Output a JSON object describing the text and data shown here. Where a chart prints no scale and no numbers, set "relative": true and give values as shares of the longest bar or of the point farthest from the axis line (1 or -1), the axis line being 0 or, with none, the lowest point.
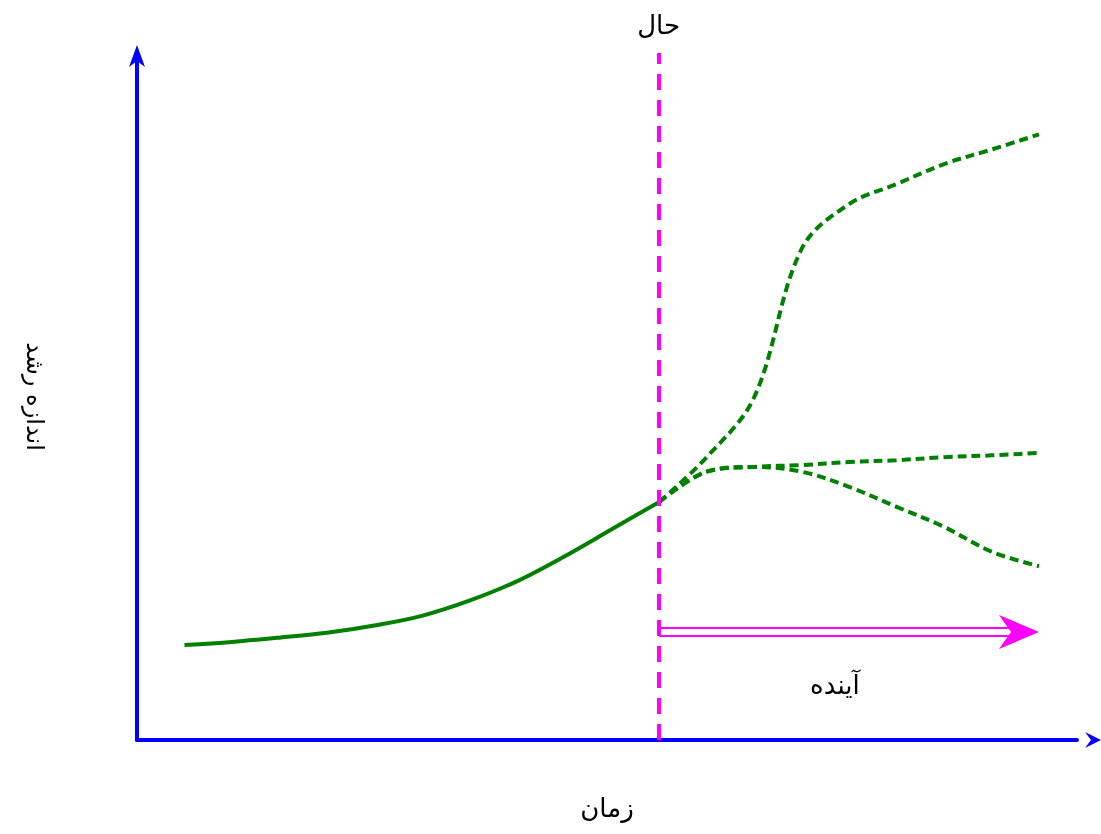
{
  "chart_data": {
    "type": "line",
    "relative": true,
    "xlabel": "زمان",
    "ylabel": "اندازه رشد",
    "categories": [
      null,
      null,
      null,
      null,
      null,
      null,
      null,
      null,
      null,
      null,
      null,
      null,
      null,
      null,
      null,
      null,
      null,
      null,
      null
    ],
    "series": [
      {
        "color": "#008000",
        "line_style": "solid",
        "values": [
          0.157,
          0.162,
          0.169,
          0.177,
          0.189,
          0.205,
          0.23,
          0.262,
          0.303,
          0.348,
          0.393,
          null,
          null,
          null,
          null,
          null,
          null,
          null,
          null
        ]
      },
      {
        "color": "#008000",
        "line_style": "dashed",
        "values": [
          null,
          null,
          null,
          null,
          null,
          null,
          null,
          null,
          null,
          null,
          0.393,
          0.467,
          0.566,
          0.811,
          0.885,
          0.918,
          0.951,
          0.975,
          1.0
        ]
      },
      {
        "color": "#008000",
        "line_style": "dashed",
        "values": [
          null,
          null,
          null,
          null,
          null,
          null,
          null,
          null,
          null,
          null,
          0.393,
          0.443,
          0.451,
          0.454,
          0.459,
          0.462,
          0.467,
          0.47,
          0.474
        ]
      },
      {
        "color": "#008000",
        "line_style": "dashed",
        "values": [
          null,
          null,
          null,
          null,
          null,
          null,
          null,
          null,
          null,
          null,
          0.393,
          0.443,
          0.451,
          0.443,
          0.418,
          0.385,
          0.352,
          0.311,
          0.287
        ]
      }
    ],
    "annotations": [
      "حال",
      "آینده"
    ],
    "grid": false,
    "marker": "none"
  }
}
